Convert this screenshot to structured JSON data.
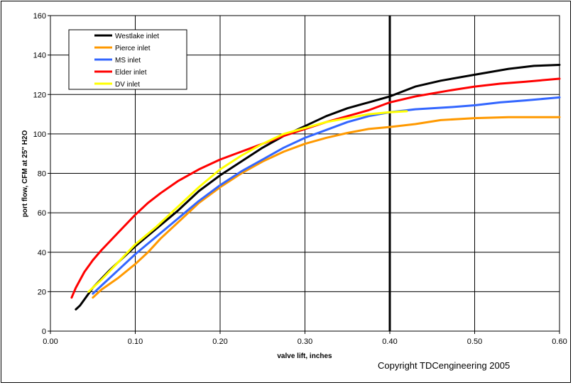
{
  "chart_data": {
    "type": "line",
    "title": "",
    "xlabel": "valve lift, inches",
    "ylabel": "port flow, CFM at 25\" H2O",
    "xlim": [
      0,
      0.6
    ],
    "ylim": [
      0,
      160
    ],
    "x_ticks": [
      0,
      0.1,
      0.2,
      0.3,
      0.4,
      0.5,
      0.6
    ],
    "x_tick_labels": [
      "0.00",
      "0.10",
      "0.20",
      "0.30",
      "0.40",
      "0.50",
      "0.60"
    ],
    "y_ticks": [
      0,
      20,
      40,
      60,
      80,
      100,
      120,
      140,
      160
    ],
    "y_tick_labels": [
      "0",
      "20",
      "40",
      "60",
      "80",
      "100",
      "120",
      "140",
      "160"
    ],
    "grid": true,
    "legend_position": "top-left",
    "reference_line": {
      "x": 0.4,
      "color": "#000000"
    },
    "annotation": "Copyright TDCengineering 2005",
    "series": [
      {
        "name": "Westlake inlet",
        "color": "#000000",
        "x": [
          0.03,
          0.035,
          0.05,
          0.07,
          0.1,
          0.125,
          0.15,
          0.175,
          0.2,
          0.225,
          0.25,
          0.275,
          0.3,
          0.325,
          0.35,
          0.375,
          0.4,
          0.43,
          0.46,
          0.5,
          0.54,
          0.57,
          0.6
        ],
        "y": [
          11,
          13,
          22,
          31,
          43,
          52,
          61,
          71,
          79,
          86,
          93,
          99,
          104,
          109,
          113,
          116,
          119,
          124,
          127,
          130,
          133,
          134.5,
          135
        ]
      },
      {
        "name": "Pierce inlet",
        "color": "#FF9900",
        "x": [
          0.05,
          0.06,
          0.08,
          0.1,
          0.115,
          0.13,
          0.15,
          0.175,
          0.2,
          0.225,
          0.25,
          0.275,
          0.3,
          0.325,
          0.35,
          0.375,
          0.4,
          0.43,
          0.46,
          0.5,
          0.54,
          0.56,
          0.6
        ],
        "y": [
          17,
          21,
          27,
          34,
          40,
          47,
          55,
          65,
          73,
          80,
          86,
          91,
          95,
          98,
          100.5,
          102.5,
          103.5,
          105,
          107,
          108,
          108.5,
          108.5,
          108.5
        ]
      },
      {
        "name": "MS inlet",
        "color": "#3366FF",
        "x": [
          0.05,
          0.06,
          0.08,
          0.1,
          0.125,
          0.15,
          0.175,
          0.2,
          0.225,
          0.25,
          0.275,
          0.3,
          0.325,
          0.35,
          0.375,
          0.4,
          0.43,
          0.47,
          0.5,
          0.53,
          0.56,
          0.6
        ],
        "y": [
          19,
          23,
          31,
          39,
          48,
          57,
          66,
          74,
          81,
          87,
          93,
          98,
          102,
          106,
          109,
          111,
          112.5,
          113.5,
          114.5,
          116,
          117,
          118.5
        ]
      },
      {
        "name": "Elder inlet",
        "color": "#FF0000",
        "x": [
          0.025,
          0.03,
          0.04,
          0.05,
          0.06,
          0.08,
          0.1,
          0.115,
          0.13,
          0.15,
          0.175,
          0.2,
          0.225,
          0.25,
          0.275,
          0.3,
          0.325,
          0.35,
          0.375,
          0.4,
          0.43,
          0.47,
          0.5,
          0.53,
          0.56,
          0.6
        ],
        "y": [
          17,
          22,
          30,
          36,
          41,
          50,
          59,
          65,
          70,
          76,
          82,
          87,
          91,
          95,
          99,
          102.5,
          106,
          109,
          112,
          116,
          119,
          122,
          124,
          125.5,
          126.5,
          128
        ]
      },
      {
        "name": "DV inlet",
        "color": "#FFFF00",
        "x": [
          0.045,
          0.06,
          0.08,
          0.1,
          0.125,
          0.15,
          0.175,
          0.2,
          0.225,
          0.25,
          0.275,
          0.3,
          0.325,
          0.35,
          0.375,
          0.4,
          0.42
        ],
        "y": [
          20,
          26,
          35,
          44,
          53,
          63,
          73,
          82,
          89,
          95,
          100,
          103,
          106,
          108,
          110,
          111,
          111.5
        ]
      }
    ]
  }
}
